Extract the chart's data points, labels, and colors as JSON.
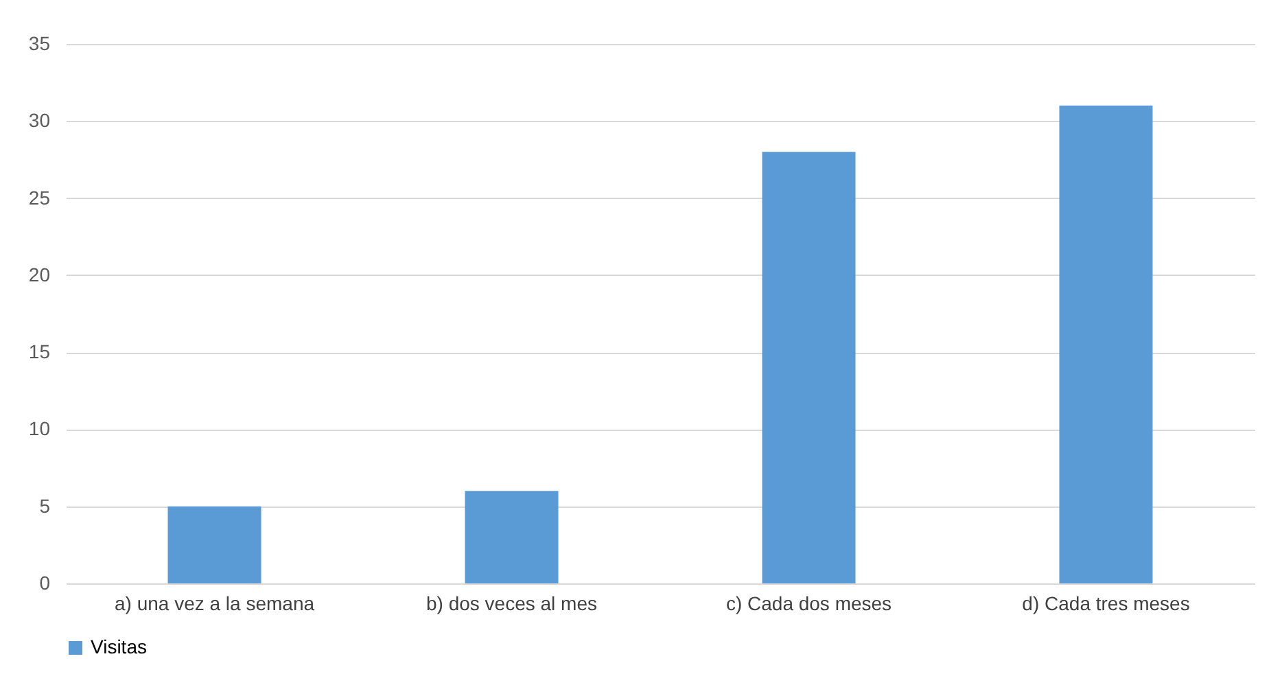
{
  "chart_data": {
    "type": "bar",
    "categories": [
      "a) una vez a la semana",
      "b) dos veces al mes",
      "c) Cada dos meses",
      "d) Cada tres meses"
    ],
    "series": [
      {
        "name": "Visitas",
        "color": "#5b9bd5",
        "values": [
          5,
          6,
          28,
          31
        ]
      }
    ],
    "ylim": [
      0,
      35
    ],
    "yticks": [
      0,
      5,
      10,
      15,
      20,
      25,
      30,
      35
    ],
    "grid": "y",
    "legend": "bottom"
  }
}
